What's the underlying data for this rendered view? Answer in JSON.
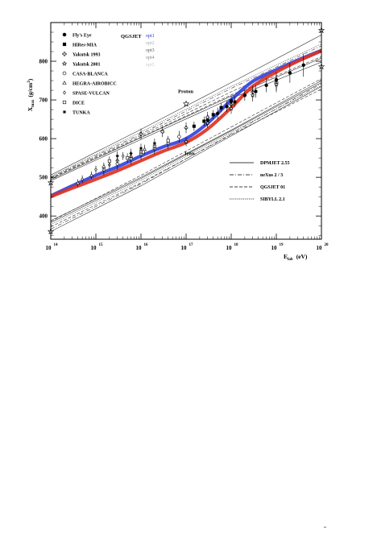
{
  "chart_data": {
    "type": "line",
    "title": "",
    "xlabel": "E",
    "xlabel_sub": "lab",
    "xlabel_unit": "(eV)",
    "ylabel": "X",
    "ylabel_sub": "max",
    "ylabel_unit": "(g/cm",
    "ylabel_unit_sup": "2",
    "ylabel_unit_close": ")",
    "x_scale": "log",
    "xlim": [
      100000000000000.0,
      1e+20
    ],
    "ylim": [
      340,
      900
    ],
    "x_ticks": [
      {
        "base": "10",
        "exp": "14",
        "value": 100000000000000.0
      },
      {
        "base": "10",
        "exp": "15",
        "value": 1000000000000000.0
      },
      {
        "base": "10",
        "exp": "16",
        "value": 1e+16
      },
      {
        "base": "10",
        "exp": "17",
        "value": 1e+17
      },
      {
        "base": "10",
        "exp": "18",
        "value": 1e+18
      },
      {
        "base": "10",
        "exp": "19",
        "value": 1e+19
      },
      {
        "base": "10",
        "exp": "20",
        "value": 1e+20
      }
    ],
    "y_ticks": [
      "400",
      "500",
      "600",
      "700",
      "800"
    ],
    "grid": false,
    "legend_experiments": {
      "placement": "top-left",
      "entries": [
        {
          "label": "Fly's Eye",
          "marker": "filled-circle"
        },
        {
          "label": "HiRes-MIA",
          "marker": "filled-square"
        },
        {
          "label": "Yakutsk 1993",
          "marker": "open-cross"
        },
        {
          "label": "Yakutsk 2001",
          "marker": "star"
        },
        {
          "label": "CASA-BLANCA",
          "marker": "open-circle"
        },
        {
          "label": "HEGRA-AIROBICC",
          "marker": "open-triangle"
        },
        {
          "label": "SPASE-VULCAN",
          "marker": "open-diamond"
        },
        {
          "label": "DICE",
          "marker": "open-square"
        },
        {
          "label": "TUNKA",
          "marker": "asterisk"
        }
      ]
    },
    "legend_qgsjet": {
      "title": "QGSJET",
      "placement": "top-center",
      "entries": [
        {
          "label": "opt1",
          "color": "#2233cc"
        },
        {
          "label": "opt2",
          "color": "#aaaaaa"
        },
        {
          "label": "opt3",
          "color": "#555555"
        },
        {
          "label": "opt4",
          "color": "#888888"
        },
        {
          "label": "opt5",
          "color": "#cccccc"
        }
      ]
    },
    "legend_models": {
      "placement": "bottom-right",
      "entries": [
        {
          "label": "DPMJET 2.55",
          "dash": ""
        },
        {
          "label": "neXus 2 / 3",
          "dash": "5,2,1,2"
        },
        {
          "label": "QGSJET 01",
          "dash": "4,2"
        },
        {
          "label": "SIBYLL 2.1",
          "dash": "1.2,1.2"
        }
      ]
    },
    "annotations": [
      {
        "text": "Proton",
        "x": 1e+17,
        "y": 718
      },
      {
        "text": "Iron",
        "x": 1.4e+17,
        "y": 558
      }
    ],
    "highlight_bands": [
      {
        "color": "#3344dd",
        "x": [
          100000000000000.0,
          300000000000000.0,
          1000000000000000.0,
          3000000000000000.0,
          1e+16,
          3e+16,
          1e+17,
          3e+17,
          1e+18,
          3e+18,
          1e+19,
          3e+19,
          1e+20
        ],
        "y": [
          452,
          478,
          505,
          527,
          555,
          578,
          600,
          640,
          700,
          748,
          778,
          803,
          828
        ]
      },
      {
        "color": "#dd3322",
        "x": [
          100000000000000.0,
          300000000000000.0,
          1000000000000000.0,
          3000000000000000.0,
          1e+16,
          3e+16,
          1e+17,
          3e+17,
          1e+18,
          3e+18,
          1e+19,
          3e+19,
          1e+20
        ],
        "y": [
          450,
          472,
          495,
          517,
          543,
          567,
          590,
          625,
          680,
          735,
          772,
          800,
          827
        ]
      }
    ],
    "proton_lines": [
      {
        "dash": "",
        "x": [
          100000000000000.0,
          1e+16,
          1e+18,
          1e+20
        ],
        "y": [
          506,
          624,
          745,
          868
        ]
      },
      {
        "dash": "5,2,1,2",
        "x": [
          100000000000000.0,
          1e+16,
          1e+18,
          1e+20
        ],
        "y": [
          500,
          612,
          730,
          840
        ]
      },
      {
        "dash": "4,2",
        "x": [
          100000000000000.0,
          1e+16,
          1e+18,
          1e+20
        ],
        "y": [
          497,
          604,
          713,
          812
        ]
      },
      {
        "dash": "1.2,1.2",
        "x": [
          100000000000000.0,
          1e+16,
          1e+18,
          1e+20
        ],
        "y": [
          502,
          617,
          735,
          845
        ]
      },
      {
        "dash": "",
        "x": [
          100000000000000.0,
          1e+16,
          1e+18,
          1e+20
        ],
        "y": [
          494,
          603,
          710,
          808
        ]
      },
      {
        "dash": "",
        "x": [
          100000000000000.0,
          1e+16,
          1e+18,
          1e+20
        ],
        "y": [
          491,
          598,
          704,
          798
        ]
      },
      {
        "dash": "4,2",
        "x": [
          100000000000000.0,
          1e+16,
          1e+18,
          1e+20
        ],
        "y": [
          498,
          608,
          721,
          826
        ]
      }
    ],
    "iron_lines": [
      {
        "dash": "",
        "x": [
          100000000000000.0,
          1e+16,
          1e+18,
          1e+20
        ],
        "y": [
          360,
          478,
          607,
          735
        ]
      },
      {
        "dash": "5,2,1,2",
        "x": [
          100000000000000.0,
          1e+16,
          1e+18,
          1e+20
        ],
        "y": [
          366,
          483,
          612,
          742
        ]
      },
      {
        "dash": "4,2",
        "x": [
          100000000000000.0,
          1e+16,
          1e+18,
          1e+20
        ],
        "y": [
          372,
          486,
          610,
          728
        ]
      },
      {
        "dash": "1.2,1.2",
        "x": [
          100000000000000.0,
          1e+16,
          1e+18,
          1e+20
        ],
        "y": [
          378,
          492,
          616,
          737
        ]
      },
      {
        "dash": "",
        "x": [
          100000000000000.0,
          1e+16,
          1e+18,
          1e+20
        ],
        "y": [
          383,
          497,
          620,
          745
        ]
      },
      {
        "dash": "",
        "x": [
          100000000000000.0,
          1e+16,
          1e+18,
          1e+20
        ],
        "y": [
          388,
          500,
          622,
          750
        ]
      },
      {
        "dash": "4,2",
        "x": [
          100000000000000.0,
          1e+16,
          1e+18,
          1e+20
        ],
        "y": [
          386,
          505,
          630,
          755
        ]
      }
    ],
    "series": [
      {
        "name": "Fly's Eye",
        "marker": "filled-circle",
        "x": [
          3e+17,
          5e+17,
          8e+17,
          1.2e+18,
          2e+18,
          3.5e+18,
          6e+18,
          1e+19,
          2e+19,
          4e+19
        ],
        "y": [
          648,
          665,
          683,
          695,
          712,
          722,
          738,
          752,
          770,
          790
        ],
        "err": [
          18,
          15,
          14,
          14,
          14,
          16,
          18,
          20,
          26,
          30
        ]
      },
      {
        "name": "HiRes-MIA",
        "marker": "filled-square",
        "x": [
          1.5e+17,
          2.5e+17,
          4e+17,
          6e+17,
          1e+18
        ],
        "y": [
          632,
          645,
          662,
          680,
          697
        ],
        "err": [
          12,
          12,
          12,
          12,
          14
        ]
      },
      {
        "name": "Yakutsk 1993",
        "marker": "open-cross",
        "x": [
          1e+16,
          3e+16,
          1e+17,
          3e+17,
          1e+18,
          3e+18,
          1e+19
        ],
        "y": [
          612,
          618,
          628,
          655,
          688,
          720,
          745
        ],
        "err": [
          14,
          14,
          14,
          14,
          15,
          16,
          20
        ]
      },
      {
        "name": "Yakutsk 2001",
        "marker": "star",
        "x": [
          1e+17,
          3e+17,
          1e+18,
          3e+18,
          1e+19
        ],
        "y": [
          592,
          640,
          678,
          712,
          740
        ],
        "err": [
          12,
          12,
          14,
          16,
          20
        ]
      },
      {
        "name": "CASA-BLANCA",
        "marker": "open-circle",
        "x": [
          1500000000000000.0,
          3000000000000000.0,
          6000000000000000.0,
          1e+16,
          2e+16,
          4e+16,
          7e+16
        ],
        "y": [
          520,
          535,
          548,
          560,
          575,
          588,
          605
        ],
        "err": [
          15,
          15,
          15,
          15,
          15,
          15,
          15
        ]
      },
      {
        "name": "HEGRA-AIROBICC",
        "marker": "open-triangle",
        "x": [
          400000000000000.0,
          800000000000000.0,
          1500000000000000.0,
          3000000000000000.0,
          6000000000000000.0,
          1.2e+16
        ],
        "y": [
          485,
          505,
          528,
          545,
          555,
          572
        ],
        "err": [
          10,
          10,
          10,
          10,
          12,
          12
        ]
      },
      {
        "name": "SPASE-VULCAN",
        "marker": "open-diamond",
        "x": [
          500000000000000.0,
          1000000000000000.0,
          2000000000000000.0,
          4000000000000000.0
        ],
        "y": [
          495,
          520,
          532,
          555
        ],
        "err": [
          10,
          10,
          10,
          10
        ]
      },
      {
        "name": "DICE",
        "marker": "open-square",
        "x": [
          2000000000000000.0,
          5000000000000000.0,
          1e+16,
          2e+16,
          4e+16
        ],
        "y": [
          542,
          550,
          566,
          580,
          595
        ],
        "err": [
          12,
          12,
          12,
          12,
          12
        ]
      },
      {
        "name": "TUNKA",
        "marker": "asterisk",
        "x": [
          3000000000000000.0,
          6000000000000000.0,
          1e+16,
          2e+16
        ],
        "y": [
          555,
          562,
          575,
          588
        ],
        "err": [
          12,
          12,
          12,
          12
        ]
      }
    ],
    "boundary_markers": [
      {
        "marker": "star",
        "x": 100000000000000.0,
        "y": 360
      },
      {
        "marker": "star",
        "x": 100000000000000.0,
        "y": 486
      },
      {
        "marker": "star",
        "x": 1e+20,
        "y": 880
      },
      {
        "marker": "star",
        "x": 1e+20,
        "y": 786
      },
      {
        "marker": "star",
        "x": 1e+17,
        "y": 690
      }
    ]
  }
}
